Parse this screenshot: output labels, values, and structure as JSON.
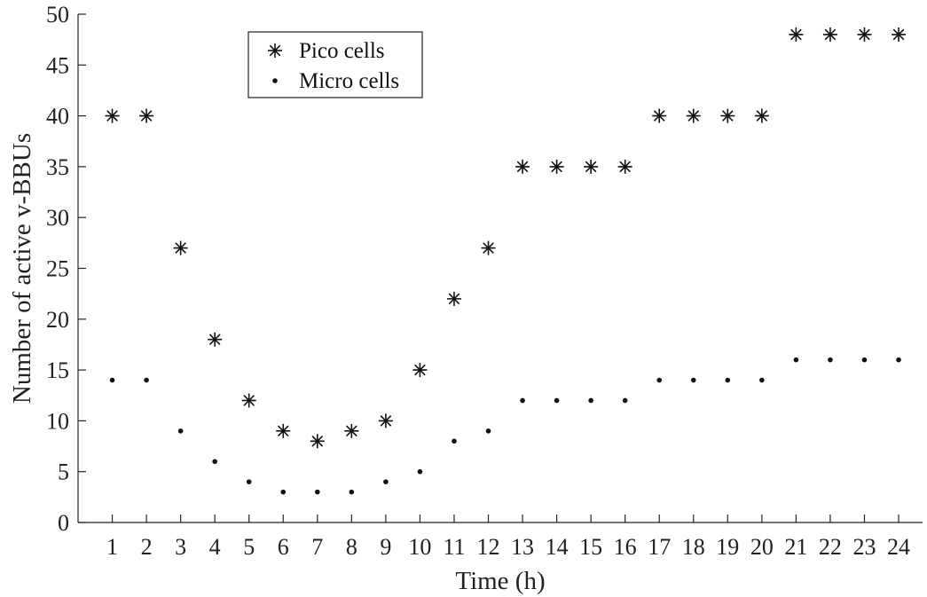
{
  "chart_data": {
    "type": "scatter",
    "xlabel": "Time (h)",
    "ylabel": "Number of active v-BBUs",
    "xlim": [
      0,
      24.7
    ],
    "ylim": [
      0,
      50
    ],
    "x": [
      1,
      2,
      3,
      4,
      5,
      6,
      7,
      8,
      9,
      10,
      11,
      12,
      13,
      14,
      15,
      16,
      17,
      18,
      19,
      20,
      21,
      22,
      23,
      24
    ],
    "xticks": [
      "1",
      "2",
      "3",
      "4",
      "5",
      "6",
      "7",
      "8",
      "9",
      "10",
      "11",
      "12",
      "13",
      "14",
      "15",
      "16",
      "17",
      "18",
      "19",
      "20",
      "21",
      "22",
      "23",
      "24"
    ],
    "yticks": [
      "0",
      "5",
      "10",
      "15",
      "20",
      "25",
      "30",
      "35",
      "40",
      "45",
      "50"
    ],
    "grid": false,
    "legend_position": "top-left",
    "series": [
      {
        "name": "Pico cells",
        "marker": "asterisk",
        "color": "#111111",
        "values": [
          40,
          40,
          27,
          18,
          12,
          9,
          8,
          9,
          10,
          15,
          22,
          27,
          35,
          35,
          35,
          35,
          40,
          40,
          40,
          40,
          48,
          48,
          48,
          48
        ]
      },
      {
        "name": "Micro cells",
        "marker": "dot",
        "color": "#111111",
        "values": [
          14,
          14,
          9,
          6,
          4,
          3,
          3,
          3,
          4,
          5,
          8,
          9,
          12,
          12,
          12,
          12,
          14,
          14,
          14,
          14,
          16,
          16,
          16,
          16
        ]
      }
    ]
  }
}
